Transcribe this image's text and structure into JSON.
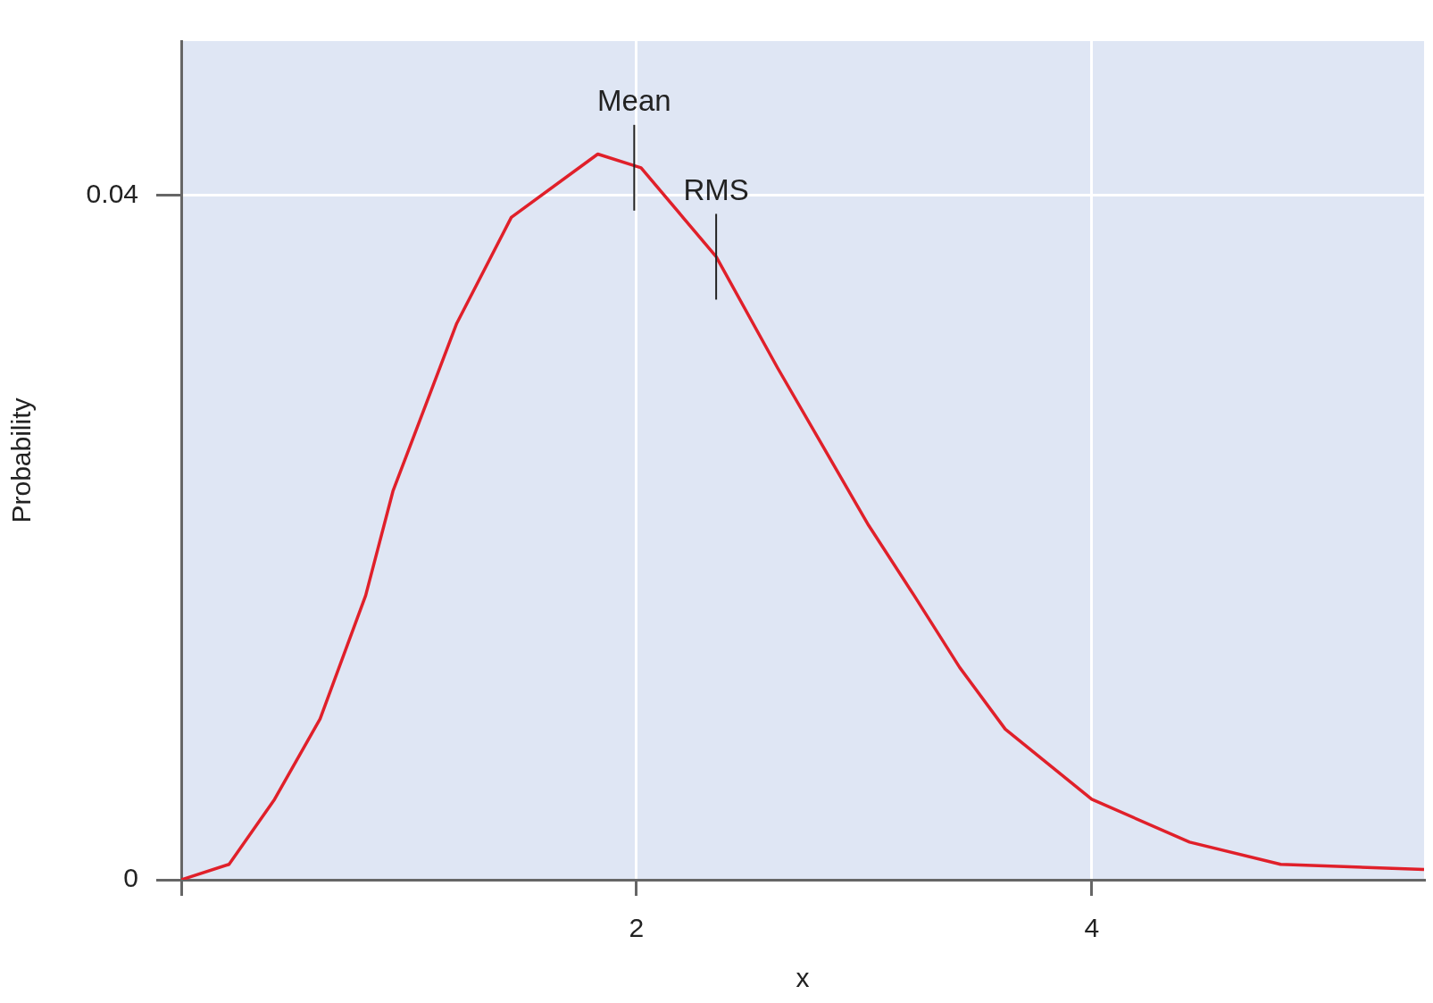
{
  "chart_data": {
    "type": "line",
    "xlabel": "x",
    "ylabel": "Probability",
    "x": [
      0,
      0.21,
      0.41,
      0.61,
      0.81,
      0.93,
      1.21,
      1.45,
      1.83,
      2.02,
      2.35,
      2.62,
      2.82,
      3.02,
      3.22,
      3.42,
      3.62,
      4.0,
      4.43,
      4.83,
      5.46
    ],
    "series": [
      {
        "color": "#e0202a",
        "values": [
          0,
          0.0009,
          0.0047,
          0.0094,
          0.0166,
          0.0227,
          0.0325,
          0.0387,
          0.0424,
          0.0416,
          0.0364,
          0.0299,
          0.0253,
          0.0207,
          0.0166,
          0.0124,
          0.0088,
          0.0047,
          0.0022,
          0.0009,
          0.0006
        ]
      }
    ],
    "xlim": [
      0,
      5.46
    ],
    "ylim": [
      0,
      0.049
    ],
    "xticks": [
      {
        "value": 0,
        "label": null
      },
      2,
      4
    ],
    "yticks": [
      0,
      0.04
    ],
    "grid": true,
    "legend": false,
    "marker": "none",
    "line_style": "solid",
    "annotations": [
      {
        "text": "Mean",
        "x": 1.99,
        "y": 0.0416
      },
      {
        "text": "RMS",
        "x": 2.35,
        "y": 0.0364
      }
    ]
  }
}
